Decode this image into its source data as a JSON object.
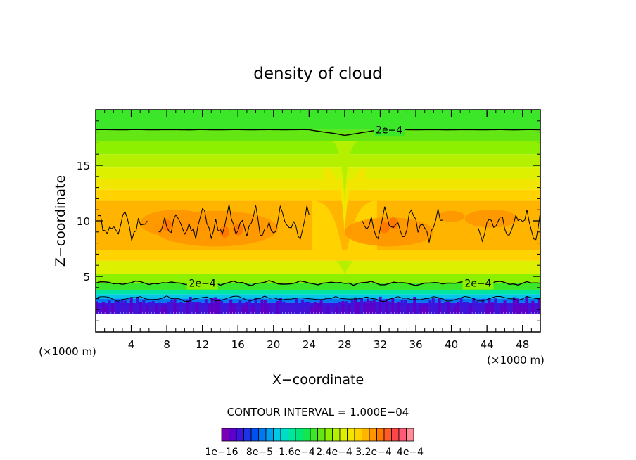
{
  "chart_data": {
    "type": "heatmap",
    "title": "density of cloud",
    "xlabel": "X−coordinate",
    "ylabel": "Z−coordinate",
    "x_unit_left": "(×1000 m)",
    "x_unit_right": "(×1000 m)",
    "xlim": [
      0,
      50
    ],
    "ylim": [
      0,
      20
    ],
    "xticks": [
      4,
      8,
      12,
      16,
      20,
      24,
      28,
      32,
      36,
      40,
      44,
      48
    ],
    "xtick_labels": [
      "4",
      "8",
      "12",
      "16",
      "20",
      "24",
      "28",
      "32",
      "36",
      "40",
      "44",
      "48"
    ],
    "yticks": [
      5,
      10,
      15
    ],
    "ytick_labels": [
      "5",
      "10",
      "15"
    ],
    "contour_interval_text": "CONTOUR INTERVAL = 1.000E−04",
    "contour_labels": [
      "2e−4",
      "2e−4",
      "2e−4"
    ],
    "contour_lines": [
      {
        "label": "2e−4",
        "z": 18.2,
        "x_label": 33
      },
      {
        "label": "2e−4",
        "z": 4.4,
        "x_label": 12
      },
      {
        "label": "2e−4",
        "z": 4.4,
        "x_label": 43
      }
    ],
    "colorbar": {
      "labels": [
        "1e−16",
        "8e−5",
        "1.6e−4",
        "2.4e−4",
        "3.2e−4",
        "4e−4"
      ],
      "colors": [
        "#7a00b4",
        "#5a00c8",
        "#3c14dc",
        "#1e32e6",
        "#0050f0",
        "#0078f0",
        "#00a0f0",
        "#00c8e6",
        "#00dcc8",
        "#00e6a0",
        "#00e678",
        "#14e650",
        "#3ce628",
        "#64e614",
        "#8cf000",
        "#b4f000",
        "#dcf000",
        "#f0e600",
        "#ffd200",
        "#ffb400",
        "#ff9600",
        "#ff7800",
        "#ff5a28",
        "#ff4646",
        "#ff5a78",
        "#ff8c96"
      ]
    },
    "field": [
      {
        "z": [
          18.2,
          20.0
        ],
        "color": "#3ce628"
      },
      {
        "z": [
          17.2,
          18.2
        ],
        "color": "#64e614"
      },
      {
        "z": [
          16.0,
          17.2
        ],
        "color": "#8cf000"
      },
      {
        "z": [
          14.8,
          16.0
        ],
        "color": "#b4f000"
      },
      {
        "z": [
          13.8,
          14.8
        ],
        "color": "#dcf000"
      },
      {
        "z": [
          12.8,
          13.8
        ],
        "color": "#f0e600"
      },
      {
        "z": [
          11.8,
          12.8
        ],
        "color": "#ffd200"
      },
      {
        "z": [
          7.4,
          11.8
        ],
        "color": "#ffb400"
      },
      {
        "z": [
          6.4,
          7.4
        ],
        "color": "#ffd200"
      },
      {
        "z": [
          5.2,
          6.4
        ],
        "color": "#dcf000"
      },
      {
        "z": [
          4.4,
          5.2
        ],
        "color": "#8cf000"
      },
      {
        "z": [
          3.8,
          4.4
        ],
        "color": "#3ce628"
      },
      {
        "z": [
          3.4,
          3.8
        ],
        "color": "#00e6a0"
      },
      {
        "z": [
          3.0,
          3.4
        ],
        "color": "#00c8e6"
      },
      {
        "z": [
          2.6,
          3.0
        ],
        "color": "#0078f0"
      },
      {
        "z": [
          2.2,
          2.6
        ],
        "color": "#3c14dc"
      },
      {
        "z": [
          1.8,
          2.2
        ],
        "color": "#7a00b4"
      }
    ]
  }
}
